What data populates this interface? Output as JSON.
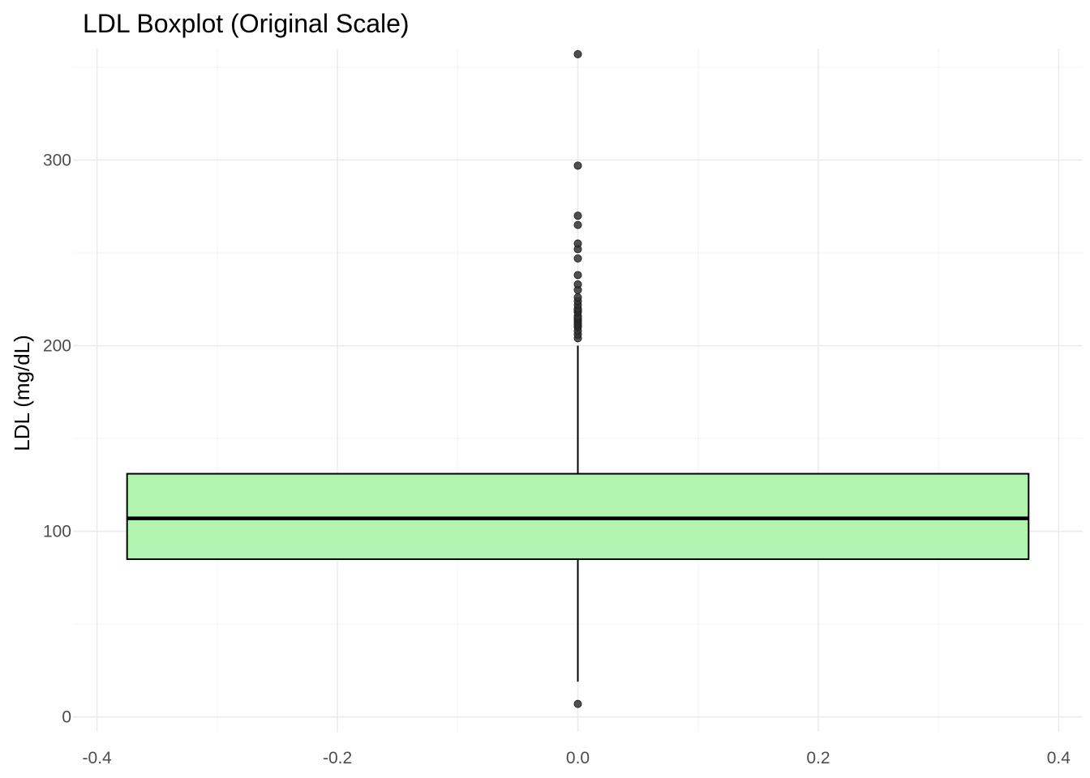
{
  "chart_data": {
    "type": "box",
    "title": "LDL Boxplot (Original Scale)",
    "xlabel": "",
    "ylabel": "LDL (mg/dL)",
    "xlim": [
      -0.42,
      0.42
    ],
    "ylim": [
      -8,
      360
    ],
    "x_ticks": [
      -0.4,
      -0.2,
      0.0,
      0.2,
      0.4
    ],
    "x_tick_labels": [
      "-0.4",
      "-0.2",
      "0.0",
      "0.2",
      "0.4"
    ],
    "x_minor_ticks": [
      -0.3,
      -0.1,
      0.1,
      0.3
    ],
    "y_ticks": [
      0,
      100,
      200,
      300
    ],
    "y_tick_labels": [
      "0",
      "100",
      "200",
      "300"
    ],
    "y_minor_ticks": [
      50,
      150,
      250,
      350
    ],
    "grid": true,
    "legend": "none",
    "box": {
      "x_center": 0.0,
      "x_left": -0.375,
      "x_right": 0.375,
      "q1": 85,
      "median": 107,
      "q3": 131,
      "whisker_low": 19,
      "whisker_high": 200
    },
    "outliers": [
      7,
      204,
      206,
      208,
      210,
      211,
      212,
      213,
      214,
      215,
      216,
      218,
      219,
      220,
      222,
      224,
      226,
      230,
      233,
      238,
      247,
      252,
      255,
      265,
      270,
      297,
      357
    ],
    "colors": {
      "box_fill": "#b3f3b0",
      "box_stroke": "#000000",
      "grid_major": "#ebebeb",
      "grid_minor": "#f4f4f4",
      "outlier": "#333333"
    }
  }
}
